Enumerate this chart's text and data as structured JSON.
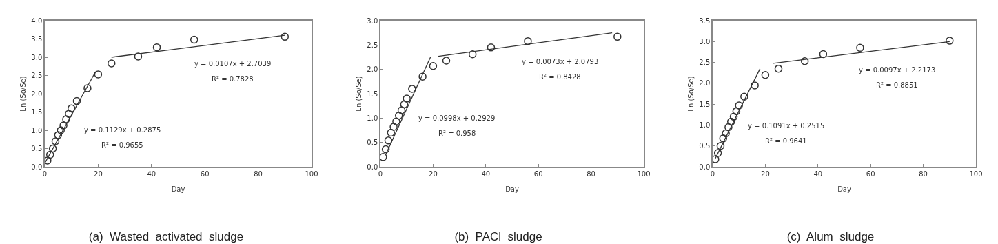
{
  "chart_data": [
    {
      "type": "scatter",
      "title": "(a)  Wasted  activated  sludge",
      "xlabel": "Day",
      "ylabel": "Ln (So/Se)",
      "marker": "circle",
      "grid": false,
      "xlim": [
        0,
        100
      ],
      "xticks": [
        0,
        20,
        40,
        60,
        80,
        100
      ],
      "ylim": [
        0,
        4
      ],
      "yticks": [
        {
          "value": 0,
          "label": "0.0"
        },
        {
          "value": 0.5,
          "label": "0.5"
        },
        {
          "value": 1,
          "label": "1.0"
        },
        {
          "value": 1.5,
          "label": "1.5"
        },
        {
          "value": 2,
          "label": "2.0"
        },
        {
          "value": 2.5,
          "label": "2.5"
        },
        {
          "value": 3,
          "label": "3.0"
        },
        {
          "value": 3.5,
          "label": "3.5"
        },
        {
          "value": 4,
          "label": "4.0"
        }
      ],
      "series": [
        {
          "color": "#333333",
          "x": [
            1,
            2,
            3,
            4,
            5,
            6,
            7,
            8,
            9,
            10,
            12,
            16,
            20,
            25,
            35,
            42,
            56,
            90
          ],
          "values": [
            0.17,
            0.33,
            0.5,
            0.7,
            0.87,
            1.0,
            1.13,
            1.3,
            1.45,
            1.6,
            1.8,
            2.15,
            2.53,
            2.83,
            3.02,
            3.27,
            3.48,
            3.56
          ]
        },
        {
          "type": "line",
          "color": "#333333",
          "marker": "none",
          "x": [
            0,
            19
          ],
          "values": [
            0.1,
            2.6
          ]
        },
        {
          "type": "line",
          "color": "#333333",
          "marker": "none",
          "x": [
            25,
            90
          ],
          "values": [
            3.0,
            3.6
          ]
        }
      ],
      "annotations": [
        "y = 0.1129x + 0.2875",
        "R² = 0.9655",
        "y = 0.0107x + 2.7039",
        "R² = 0.7828"
      ]
    },
    {
      "type": "scatter",
      "title": "(b)  PACl  sludge",
      "xlabel": "Day",
      "ylabel": "Ln (So/Se)",
      "marker": "circle",
      "grid": false,
      "xlim": [
        0,
        100
      ],
      "xticks": [
        0,
        20,
        40,
        60,
        80,
        100
      ],
      "ylim": [
        0,
        3
      ],
      "yticks": [
        {
          "value": 0,
          "label": "0.0"
        },
        {
          "value": 0.5,
          "label": "0.5"
        },
        {
          "value": 1,
          "label": "1.0"
        },
        {
          "value": 1.5,
          "label": "1.5"
        },
        {
          "value": 2,
          "label": "2.0"
        },
        {
          "value": 2.5,
          "label": "2.5"
        },
        {
          "value": 3,
          "label": "3.0"
        }
      ],
      "series": [
        {
          "color": "#333333",
          "x": [
            1,
            2,
            3,
            4,
            5,
            6,
            7,
            8,
            9,
            10,
            12,
            16,
            20,
            25,
            35,
            42,
            56,
            90
          ],
          "values": [
            0.2,
            0.36,
            0.54,
            0.7,
            0.82,
            0.93,
            1.05,
            1.16,
            1.28,
            1.4,
            1.6,
            1.85,
            2.07,
            2.18,
            2.31,
            2.45,
            2.58,
            2.67
          ]
        },
        {
          "type": "line",
          "color": "#333333",
          "marker": "none",
          "x": [
            2,
            19
          ],
          "values": [
            0.25,
            2.25
          ]
        },
        {
          "type": "line",
          "color": "#333333",
          "marker": "none",
          "x": [
            22,
            88
          ],
          "values": [
            2.27,
            2.75
          ]
        }
      ],
      "annotations": [
        "y = 0.0998x + 0.2929",
        "R² = 0.958",
        "y = 0.0073x + 2.0793",
        "R² = 0.8428"
      ]
    },
    {
      "type": "scatter",
      "title": "(c)  Alum  sludge",
      "xlabel": "Day",
      "ylabel": "Ln (So/Se)",
      "marker": "circle",
      "grid": false,
      "xlim": [
        0,
        100
      ],
      "xticks": [
        0,
        20,
        40,
        60,
        80,
        100
      ],
      "ylim": [
        0,
        3.5
      ],
      "yticks": [
        {
          "value": 0,
          "label": "0.0"
        },
        {
          "value": 0.5,
          "label": "0.5"
        },
        {
          "value": 1,
          "label": "1.0"
        },
        {
          "value": 1.5,
          "label": "1.5"
        },
        {
          "value": 2,
          "label": "2.0"
        },
        {
          "value": 2.5,
          "label": "2.5"
        },
        {
          "value": 3,
          "label": "3.0"
        },
        {
          "value": 3.5,
          "label": "3.5"
        }
      ],
      "series": [
        {
          "color": "#333333",
          "x": [
            1,
            2,
            3,
            4,
            5,
            6,
            7,
            8,
            9,
            10,
            12,
            16,
            20,
            25,
            35,
            42,
            56,
            90
          ],
          "values": [
            0.18,
            0.33,
            0.5,
            0.68,
            0.8,
            0.95,
            1.08,
            1.2,
            1.33,
            1.47,
            1.68,
            1.95,
            2.2,
            2.35,
            2.53,
            2.7,
            2.85,
            3.02
          ]
        },
        {
          "type": "line",
          "color": "#333333",
          "marker": "none",
          "x": [
            1,
            18
          ],
          "values": [
            0.2,
            2.35
          ]
        },
        {
          "type": "line",
          "color": "#333333",
          "marker": "none",
          "x": [
            23,
            90
          ],
          "values": [
            2.48,
            3.0
          ]
        }
      ],
      "annotations": [
        "y = 0.1091x + 0.2515",
        "R² = 0.9641",
        "y = 0.0097x + 2.2173",
        "R² = 0.8851"
      ]
    }
  ]
}
